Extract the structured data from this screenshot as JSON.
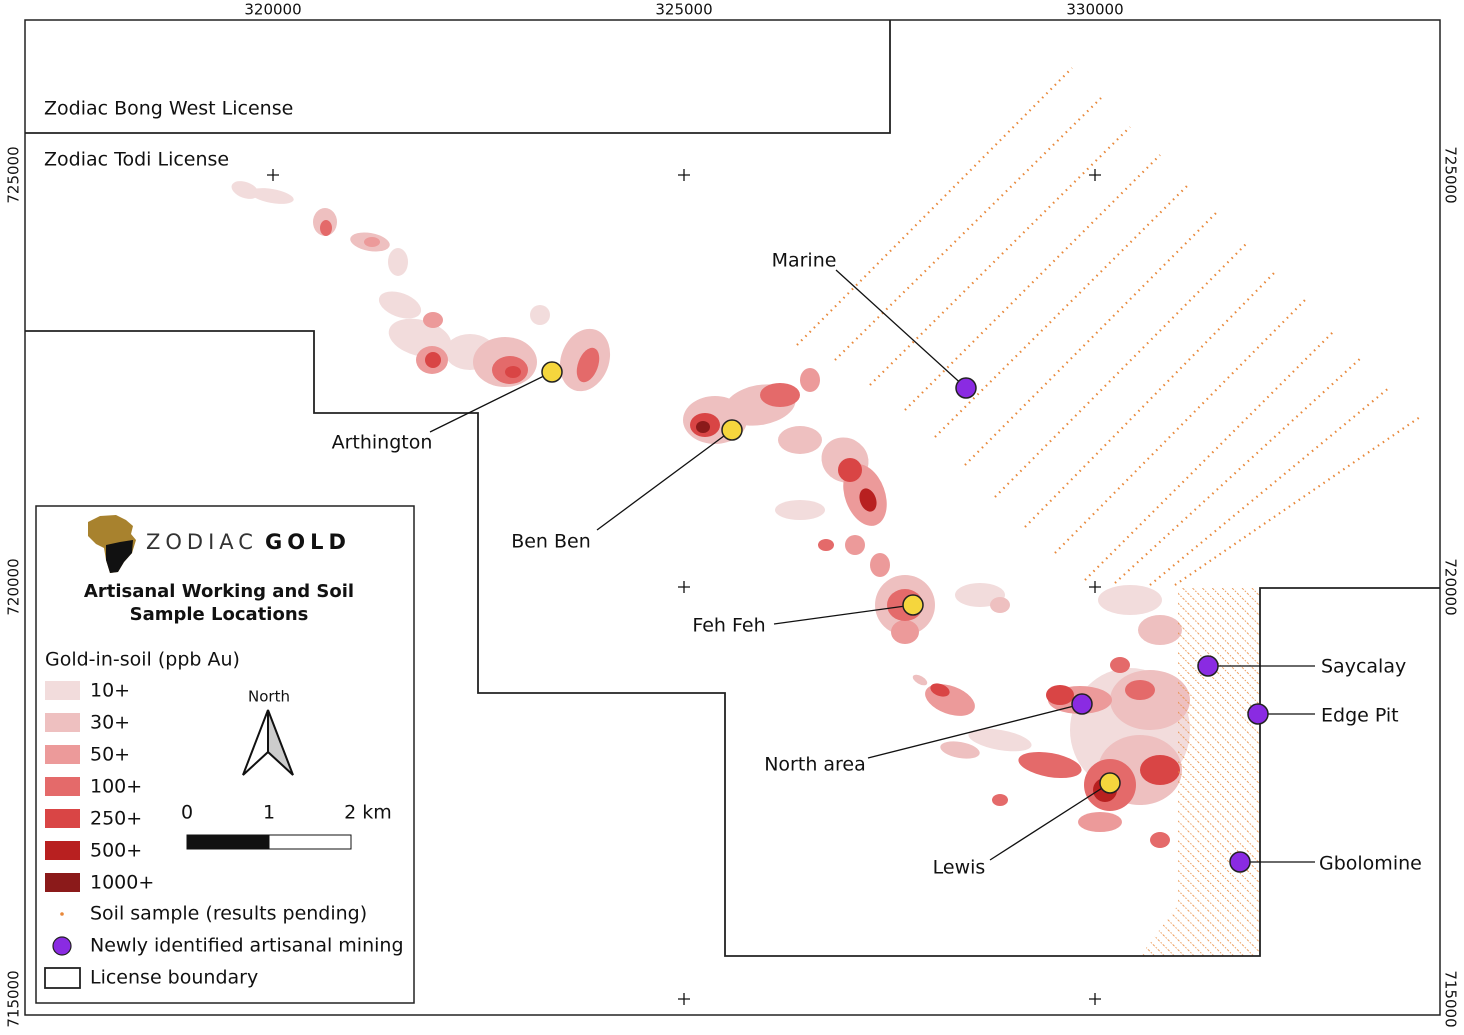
{
  "grid": {
    "eastings": [
      320000,
      325000,
      330000
    ],
    "northings": [
      725000,
      720000,
      715000
    ]
  },
  "licenses": [
    "Zodiac Bong West License",
    "Zodiac Todi License"
  ],
  "sites": [
    {
      "label": "Marine",
      "color": "#8a2be2"
    },
    {
      "label": "Arthington",
      "color": "#f5d63d"
    },
    {
      "label": "Ben Ben",
      "color": "#f5d63d"
    },
    {
      "label": "Feh Feh",
      "color": "#f5d63d"
    },
    {
      "label": "North area",
      "color": "#8a2be2"
    },
    {
      "label": "Lewis",
      "color": "#f5d63d"
    },
    {
      "label": "Saycalay",
      "color": "#8a2be2"
    },
    {
      "label": "Edge Pit",
      "color": "#8a2be2"
    },
    {
      "label": "Gbolomine",
      "color": "#8a2be2"
    }
  ],
  "legend": {
    "logo": {
      "first": "ZODIAC",
      "second": "GOLD"
    },
    "title_lines": [
      "Artisanal Working and Soil",
      "Sample Locations"
    ],
    "gold_heading": "Gold-in-soil (ppb Au)",
    "classes": [
      {
        "label": "10+",
        "color": "#f2dcdc"
      },
      {
        "label": "30+",
        "color": "#eec0c0"
      },
      {
        "label": "50+",
        "color": "#ec9a9a"
      },
      {
        "label": "100+",
        "color": "#e46a6a"
      },
      {
        "label": "250+",
        "color": "#d94545"
      },
      {
        "label": "500+",
        "color": "#b82020"
      },
      {
        "label": "1000+",
        "color": "#8b1a1a"
      }
    ],
    "soil_sample": {
      "label": "Soil sample (results pending)",
      "color": "#e8883a"
    },
    "new_mining": {
      "label": "Newly identified artisanal mining",
      "color": "#8a2be2"
    },
    "boundary": {
      "label": "License boundary"
    }
  },
  "north_arrow": "North",
  "scale_bar": [
    "0",
    "1",
    "2 km"
  ]
}
